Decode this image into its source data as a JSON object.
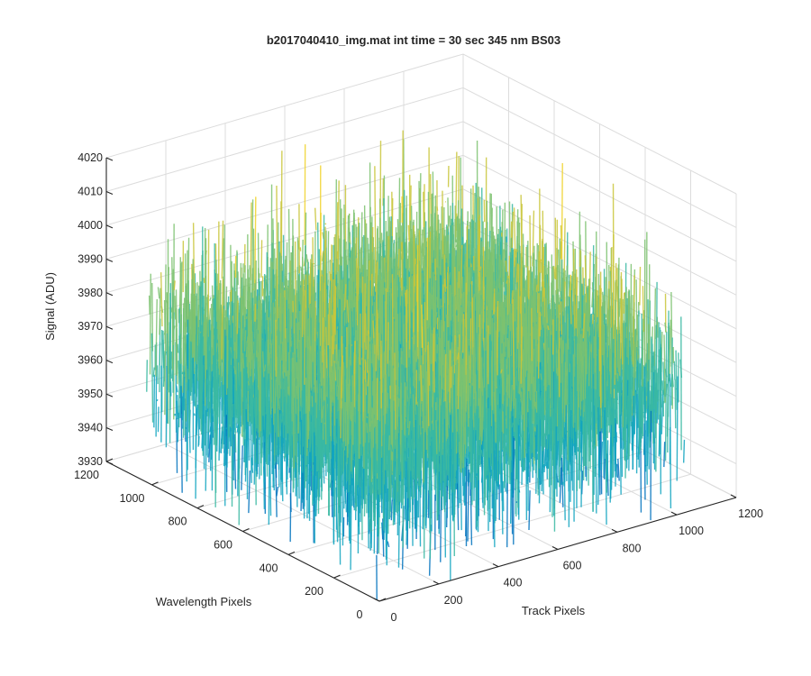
{
  "chart_data": {
    "type": "surface",
    "title": "b2017040410_img.mat int time = 30 sec  345 nm BS03",
    "xlabel": "Track Pixels",
    "ylabel": "Wavelength Pixels",
    "zlabel": "Signal (ADU)",
    "xlim": [
      0,
      1200
    ],
    "ylim": [
      0,
      1200
    ],
    "zlim": [
      3930,
      4020
    ],
    "xticks": [
      0,
      200,
      400,
      600,
      800,
      1000,
      1200
    ],
    "yticks": [
      0,
      200,
      400,
      600,
      800,
      1000,
      1200
    ],
    "zticks": [
      3930,
      3940,
      3950,
      3960,
      3970,
      3980,
      3990,
      4000,
      4010,
      4020
    ],
    "data_extent": {
      "x": [
        1,
        1024
      ],
      "y": [
        1,
        1024
      ]
    },
    "signal_stats": {
      "mean": 3968,
      "spread": 16,
      "min_approx": 3935,
      "max_approx": 4012
    },
    "colormap": [
      "#0072bd",
      "#12a4c0",
      "#3ab8a2",
      "#7cc270",
      "#c9c53a",
      "#f0d22a"
    ],
    "grid": true,
    "view": "3d-isometric"
  }
}
